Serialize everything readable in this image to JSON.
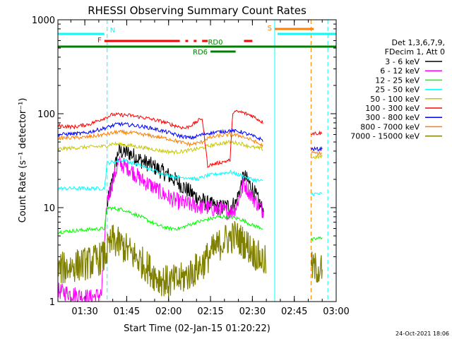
{
  "chart_data": {
    "type": "line",
    "title": "RHESSI Observing Summary Count Rates",
    "xlabel": "Start Time (02-Jan-15 01:20:22)",
    "ylabel": "Count Rate (s⁻¹ detector⁻¹)",
    "y_scale": "log",
    "ylim": [
      1,
      1000
    ],
    "xlim": [
      "01:20:22",
      "03:00:00"
    ],
    "x_ticks": [
      "01:30",
      "01:45",
      "02:00",
      "02:15",
      "02:30",
      "02:45",
      "03:00"
    ],
    "y_ticks": [
      "1",
      "10",
      "100",
      "1000"
    ],
    "legend_header": [
      "Det 1,3,6,7,9,",
      "FDecim 1, Att 0"
    ],
    "legend_placement": "right",
    "timestamp": "24-Oct-2021 18:06",
    "flags": [
      {
        "label": "N",
        "color": "#00ffff",
        "segments": [
          [
            "01:20:22",
            "01:37"
          ],
          [
            "02:39",
            "03:00"
          ]
        ]
      },
      {
        "label": "F",
        "color": "#ff0000",
        "segments": [
          [
            "01:37",
            "02:04"
          ],
          [
            "02:06",
            "02:07"
          ],
          [
            "02:09",
            "02:10"
          ],
          [
            "02:12",
            "02:14"
          ],
          [
            "02:27",
            "02:30"
          ]
        ]
      },
      {
        "label": "S",
        "color": "#ff8000",
        "segments": [
          [
            "02:38",
            "02:52"
          ]
        ]
      },
      {
        "label": "RD0",
        "color": "#008000",
        "segments": [
          [
            "01:20:22",
            "03:00"
          ]
        ]
      },
      {
        "label": "RD6",
        "color": "#008000",
        "segments": [
          [
            "02:15",
            "02:24"
          ]
        ]
      }
    ],
    "vlines": [
      {
        "t": "01:38",
        "color": "#00ffff",
        "style": "dashed"
      },
      {
        "t": "02:38",
        "color": "#00ffff",
        "style": "solid"
      },
      {
        "t": "02:51",
        "color": "#ff8000",
        "style": "dashed"
      },
      {
        "t": "02:57",
        "color": "#00ffff",
        "style": "dashed"
      }
    ],
    "series": [
      {
        "name": "3 - 6 keV",
        "color": "#000000",
        "points": [
          [
            "01:38",
            10.5
          ],
          [
            "01:42",
            40
          ],
          [
            "01:46",
            38
          ],
          [
            "01:50",
            32
          ],
          [
            "01:54",
            28
          ],
          [
            "01:58",
            24
          ],
          [
            "02:02",
            20
          ],
          [
            "02:06",
            16
          ],
          [
            "02:10",
            13
          ],
          [
            "02:14",
            11
          ],
          [
            "02:18",
            10
          ],
          [
            "02:22",
            10.5
          ],
          [
            "02:24",
            11
          ],
          [
            "02:27",
            22
          ],
          [
            "02:30",
            16
          ],
          [
            "02:34",
            9
          ]
        ]
      },
      {
        "name": "6 - 12 keV",
        "color": "#ff00ff",
        "points": [
          [
            "01:20:22",
            1.3
          ],
          [
            "01:26",
            1.2
          ],
          [
            "01:32",
            1.1
          ],
          [
            "01:36",
            1.2
          ],
          [
            "01:38",
            12
          ],
          [
            "01:42",
            30
          ],
          [
            "01:46",
            26
          ],
          [
            "01:50",
            20
          ],
          [
            "01:54",
            17
          ],
          [
            "01:58",
            14
          ],
          [
            "02:02",
            12
          ],
          [
            "02:06",
            11
          ],
          [
            "02:10",
            10.5
          ],
          [
            "02:14",
            10
          ],
          [
            "02:18",
            9.5
          ],
          [
            "02:22",
            9
          ],
          [
            "02:24",
            10
          ],
          [
            "02:27",
            18
          ],
          [
            "02:30",
            13
          ],
          [
            "02:34",
            9
          ]
        ]
      },
      {
        "name": "12 - 25 keV",
        "color": "#00ff00",
        "points": [
          [
            "01:20:22",
            5.5
          ],
          [
            "01:30",
            5.8
          ],
          [
            "01:37",
            6
          ],
          [
            "01:38",
            10
          ],
          [
            "01:44",
            9.5
          ],
          [
            "01:50",
            8
          ],
          [
            "01:56",
            6.5
          ],
          [
            "02:00",
            6
          ],
          [
            "02:04",
            6
          ],
          [
            "02:07",
            6.5
          ],
          [
            "02:10",
            7
          ],
          [
            "02:14",
            7.5
          ],
          [
            "02:18",
            8
          ],
          [
            "02:22",
            8
          ],
          [
            "02:26",
            7.5
          ],
          [
            "02:30",
            6.5
          ],
          [
            "02:34",
            6
          ],
          [
            "02:51",
            4.5
          ],
          [
            "02:55",
            4.8
          ]
        ]
      },
      {
        "name": "25 - 50 keV",
        "color": "#00ffff",
        "points": [
          [
            "01:20:22",
            16
          ],
          [
            "01:30",
            16
          ],
          [
            "01:37",
            16
          ],
          [
            "01:38",
            30
          ],
          [
            "01:44",
            32
          ],
          [
            "01:50",
            28
          ],
          [
            "01:56",
            24
          ],
          [
            "02:00",
            22
          ],
          [
            "02:04",
            21
          ],
          [
            "02:07",
            21
          ],
          [
            "02:10",
            20
          ],
          [
            "02:14",
            22
          ],
          [
            "02:18",
            23
          ],
          [
            "02:22",
            24
          ],
          [
            "02:26",
            22
          ],
          [
            "02:30",
            20
          ],
          [
            "02:34",
            19
          ],
          [
            "02:51",
            14
          ],
          [
            "02:55",
            14
          ]
        ]
      },
      {
        "name": "50 - 100 keV",
        "color": "#c8c800",
        "points": [
          [
            "01:20:22",
            42
          ],
          [
            "01:30",
            44
          ],
          [
            "01:37",
            45
          ],
          [
            "01:40",
            48
          ],
          [
            "01:46",
            46
          ],
          [
            "01:52",
            43
          ],
          [
            "01:58",
            40
          ],
          [
            "02:02",
            39
          ],
          [
            "02:06",
            40
          ],
          [
            "02:10",
            42
          ],
          [
            "02:14",
            45
          ],
          [
            "02:18",
            48
          ],
          [
            "02:22",
            50
          ],
          [
            "02:26",
            48
          ],
          [
            "02:30",
            44
          ],
          [
            "02:34",
            42
          ],
          [
            "02:51",
            34
          ],
          [
            "02:55",
            35
          ]
        ]
      },
      {
        "name": "100 - 300 keV",
        "color": "#ff0000",
        "points": [
          [
            "01:20:22",
            75
          ],
          [
            "01:26",
            72
          ],
          [
            "01:32",
            78
          ],
          [
            "01:37",
            90
          ],
          [
            "01:40",
            98
          ],
          [
            "01:46",
            96
          ],
          [
            "01:52",
            90
          ],
          [
            "01:58",
            82
          ],
          [
            "02:02",
            75
          ],
          [
            "02:06",
            70
          ],
          [
            "02:09",
            78
          ],
          [
            "02:12",
            90
          ],
          [
            "02:14",
            28
          ],
          [
            "02:18",
            30
          ],
          [
            "02:22",
            32
          ],
          [
            "02:23",
            105
          ],
          [
            "02:26",
            104
          ],
          [
            "02:30",
            95
          ],
          [
            "02:34",
            80
          ],
          [
            "02:51",
            62
          ],
          [
            "02:55",
            62
          ]
        ]
      },
      {
        "name": "300 - 800 keV",
        "color": "#0000ff",
        "points": [
          [
            "01:20:22",
            60
          ],
          [
            "01:30",
            62
          ],
          [
            "01:37",
            70
          ],
          [
            "01:42",
            78
          ],
          [
            "01:48",
            75
          ],
          [
            "01:54",
            70
          ],
          [
            "02:00",
            63
          ],
          [
            "02:04",
            58
          ],
          [
            "02:08",
            55
          ],
          [
            "02:12",
            60
          ],
          [
            "02:14",
            62
          ],
          [
            "02:18",
            64
          ],
          [
            "02:22",
            66
          ],
          [
            "02:26",
            64
          ],
          [
            "02:30",
            58
          ],
          [
            "02:34",
            52
          ],
          [
            "02:51",
            42
          ],
          [
            "02:55",
            42
          ]
        ]
      },
      {
        "name": "800 - 7000 keV",
        "color": "#ff8000",
        "points": [
          [
            "01:20:22",
            55
          ],
          [
            "01:30",
            56
          ],
          [
            "01:37",
            60
          ],
          [
            "01:42",
            64
          ],
          [
            "01:48",
            62
          ],
          [
            "01:54",
            58
          ],
          [
            "02:00",
            54
          ],
          [
            "02:04",
            50
          ],
          [
            "02:08",
            47
          ],
          [
            "02:12",
            50
          ],
          [
            "02:14",
            55
          ],
          [
            "02:18",
            58
          ],
          [
            "02:22",
            60
          ],
          [
            "02:26",
            58
          ],
          [
            "02:30",
            52
          ],
          [
            "02:34",
            45
          ],
          [
            "02:51",
            38
          ],
          [
            "02:55",
            38
          ]
        ]
      },
      {
        "name": "7000 - 15000 keV",
        "color": "#808000",
        "points": [
          [
            "01:20:22",
            2.2
          ],
          [
            "01:26",
            2.4
          ],
          [
            "01:32",
            2.6
          ],
          [
            "01:37",
            3
          ],
          [
            "01:40",
            4.5
          ],
          [
            "01:44",
            3.8
          ],
          [
            "01:48",
            3
          ],
          [
            "01:52",
            2.4
          ],
          [
            "01:56",
            1.8
          ],
          [
            "02:00",
            1.6
          ],
          [
            "02:04",
            1.7
          ],
          [
            "02:08",
            2
          ],
          [
            "02:12",
            2.5
          ],
          [
            "02:16",
            3.5
          ],
          [
            "02:20",
            4.5
          ],
          [
            "02:24",
            5
          ],
          [
            "02:28",
            4
          ],
          [
            "02:32",
            3
          ],
          [
            "02:35",
            2.6
          ],
          [
            "02:51",
            2.3
          ],
          [
            "02:55",
            2.2
          ]
        ]
      }
    ]
  }
}
